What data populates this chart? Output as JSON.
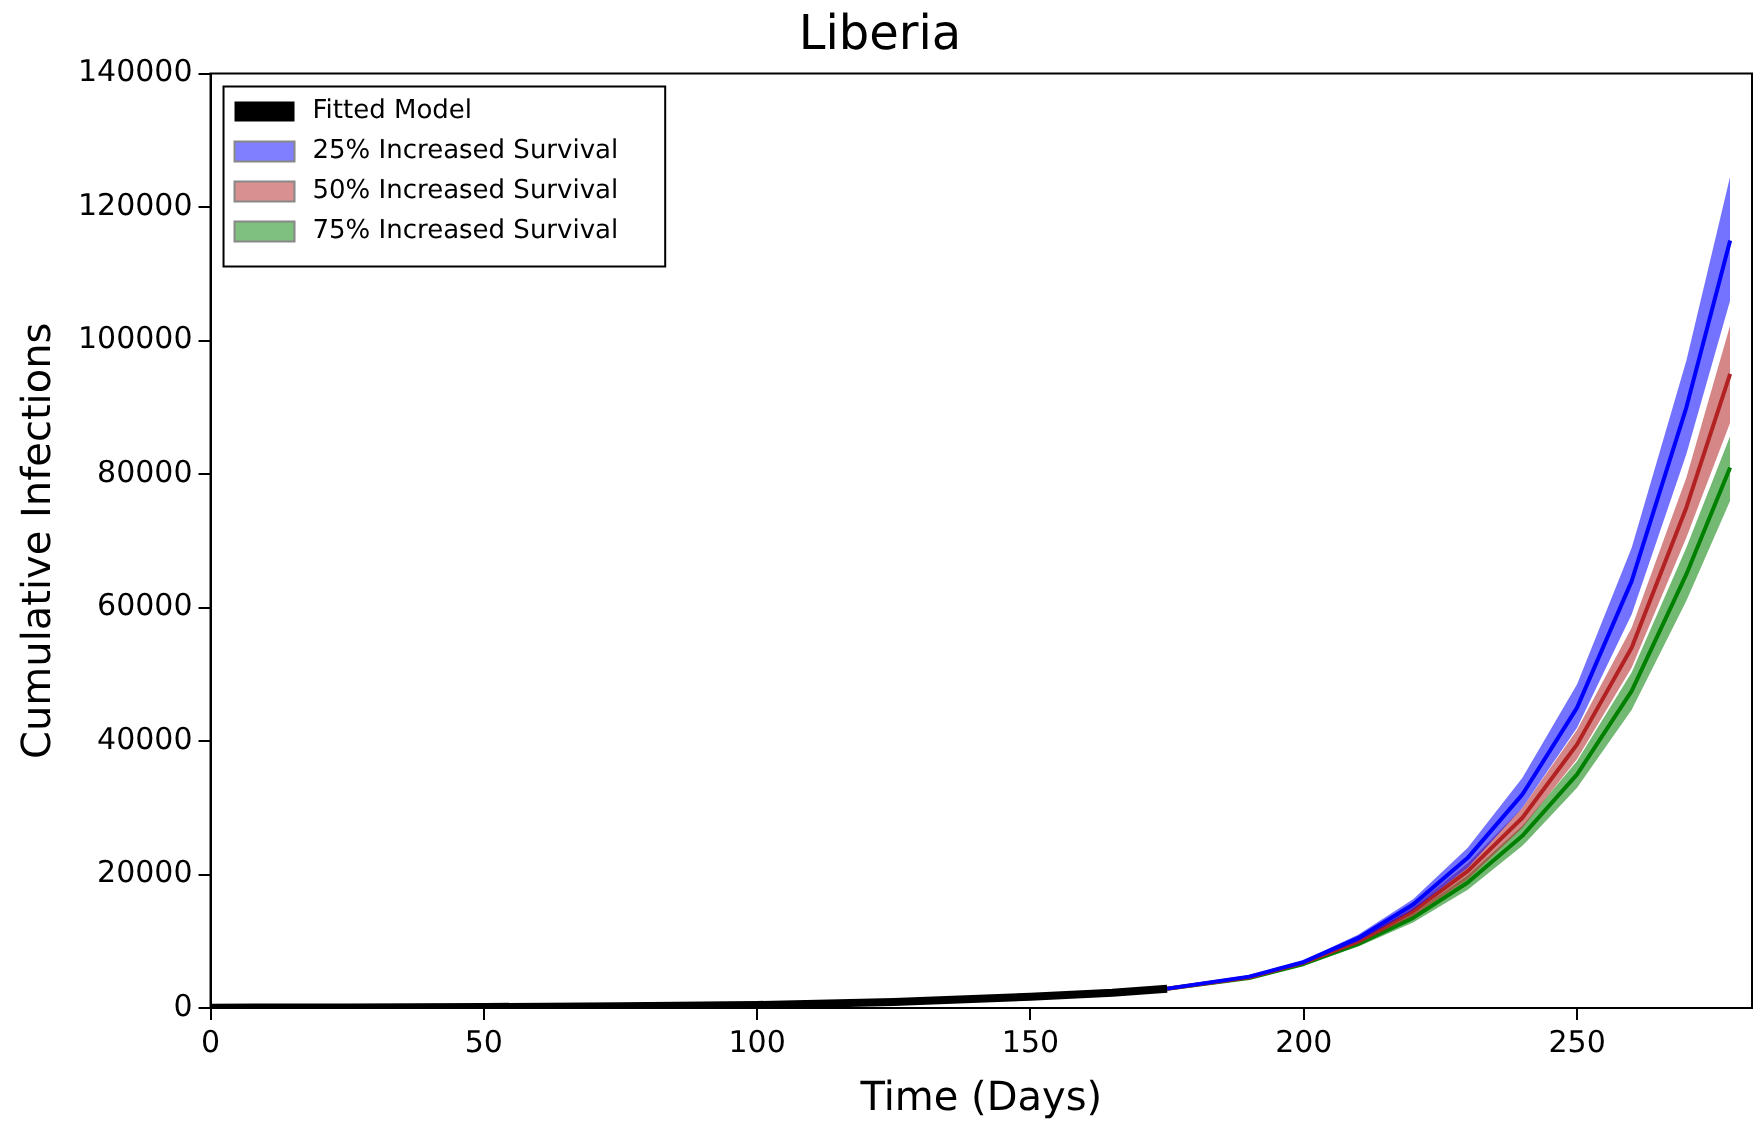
{
  "chart_data": {
    "type": "line",
    "title": "Liberia",
    "xlabel": "Time (Days)",
    "ylabel": "Cumulative Infections",
    "xlim": [
      0,
      282
    ],
    "xticks": [
      0,
      50,
      100,
      150,
      200,
      250
    ],
    "ylim": [
      0,
      140000
    ],
    "yticks": [
      0,
      20000,
      40000,
      60000,
      80000,
      100000,
      120000,
      140000
    ],
    "grid": false,
    "legend": "top left",
    "marker": "none",
    "line_style": "solid",
    "series": [
      {
        "name": "Fitted Model",
        "color": "#000000",
        "x": [
          0,
          25,
          50,
          75,
          100,
          125,
          150,
          165,
          175
        ],
        "values": [
          50,
          80,
          150,
          250,
          450,
          900,
          1700,
          2300,
          2900
        ]
      },
      {
        "name": "25% Increased Survival",
        "color": "#0000ff",
        "x": [
          175,
          190,
          200,
          210,
          220,
          230,
          240,
          250,
          260,
          270,
          278
        ],
        "values": [
          2900,
          4700,
          6900,
          10500,
          15500,
          22500,
          32000,
          45000,
          64000,
          90000,
          115000
        ],
        "lower": [
          2900,
          4600,
          6700,
          10000,
          14700,
          21000,
          30000,
          42000,
          59000,
          83000,
          106000
        ],
        "upper": [
          2900,
          4800,
          7100,
          11000,
          16300,
          24000,
          34500,
          48500,
          69000,
          97000,
          124600
        ]
      },
      {
        "name": "50% Increased Survival",
        "color": "#b22222",
        "x": [
          175,
          190,
          200,
          210,
          220,
          230,
          240,
          250,
          260,
          270,
          278
        ],
        "values": [
          2900,
          4600,
          6800,
          10000,
          14500,
          20500,
          28500,
          39500,
          54000,
          75000,
          95000
        ],
        "lower": [
          2900,
          4500,
          6600,
          9600,
          13800,
          19300,
          27000,
          37300,
          51000,
          70500,
          87700
        ],
        "upper": [
          2900,
          4700,
          7000,
          10400,
          15200,
          21700,
          30000,
          41700,
          57000,
          79500,
          102300
        ]
      },
      {
        "name": "75% Increased Survival",
        "color": "#008000",
        "x": [
          175,
          190,
          200,
          210,
          220,
          230,
          240,
          250,
          260,
          270,
          278
        ],
        "values": [
          2900,
          4500,
          6600,
          9600,
          13500,
          18800,
          25800,
          35000,
          47500,
          65000,
          81000
        ],
        "lower": [
          2900,
          4400,
          6400,
          9200,
          12800,
          17700,
          24300,
          33000,
          44700,
          61000,
          76000
        ],
        "upper": [
          2900,
          4600,
          6800,
          10000,
          14200,
          19900,
          27300,
          37000,
          50300,
          69000,
          85700
        ]
      }
    ]
  }
}
